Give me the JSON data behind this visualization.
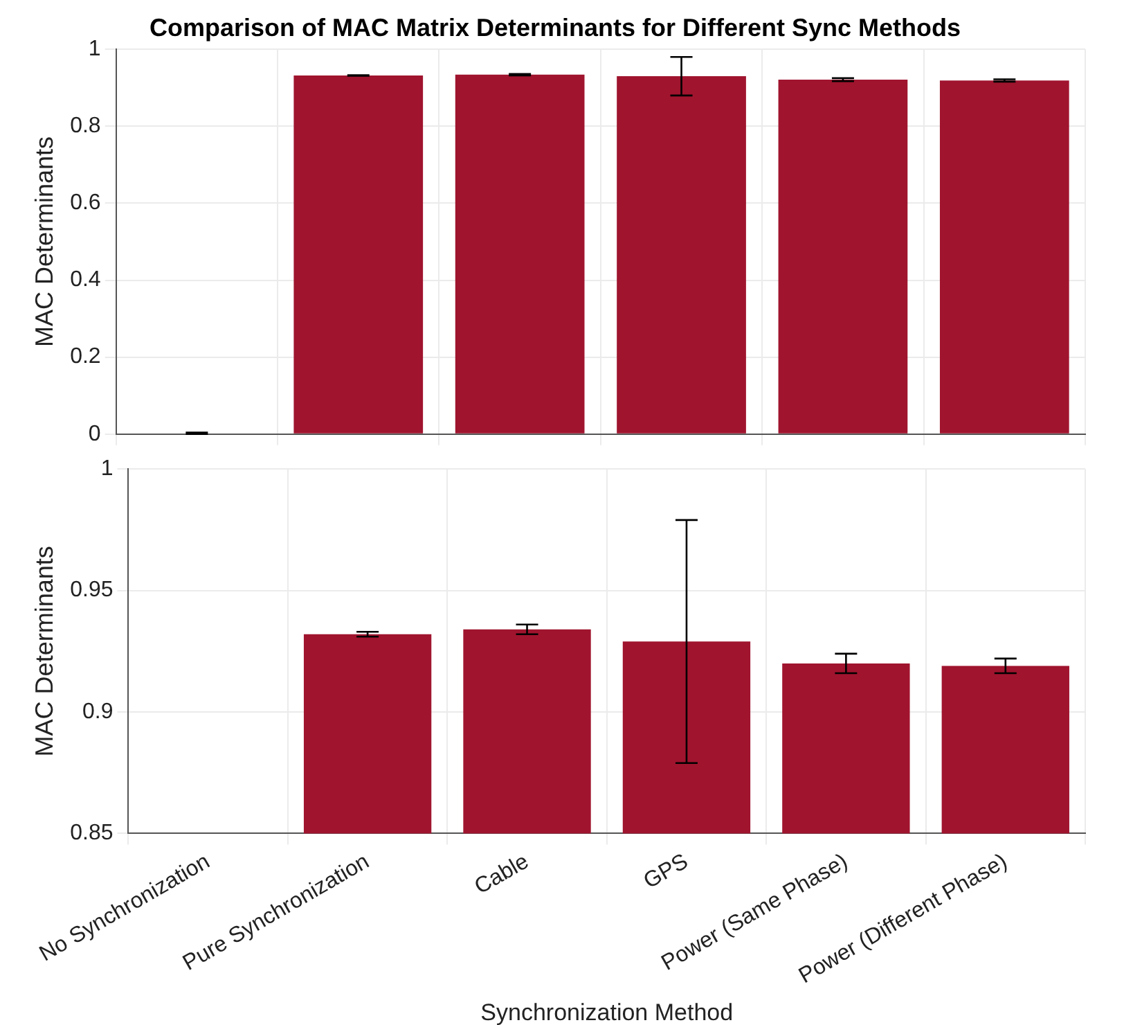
{
  "chart_data": [
    {
      "type": "bar",
      "title": "Comparison of MAC Matrix Determinants for Different Sync Methods",
      "ylabel": "MAC Determinants",
      "categories": [
        null,
        null,
        null,
        null,
        null,
        null
      ],
      "series": [
        {
          "color": "#a0142e",
          "values": [
            0.002,
            0.932,
            0.934,
            0.93,
            0.921,
            0.919
          ],
          "errors": [
            0.002,
            0.001,
            0.002,
            0.05,
            0.004,
            0.003
          ]
        }
      ],
      "ylim": [
        0,
        1
      ],
      "yticks": [
        0,
        0.2,
        0.4,
        0.6,
        0.8,
        1
      ],
      "grid": true,
      "tick_labels": "y"
    },
    {
      "type": "bar",
      "xlabel": "Synchronization Method",
      "ylabel": "MAC Determinants",
      "categories": [
        "No Synchronization",
        "Pure Synchronization",
        "Cable",
        "GPS",
        "Power (Same Phase)",
        "Power (Different Phase)"
      ],
      "series": [
        {
          "color": "#a0142e",
          "values": [
            null,
            0.932,
            0.934,
            0.929,
            0.92,
            0.919
          ],
          "errors": [
            null,
            0.001,
            0.002,
            0.05,
            0.004,
            0.003
          ]
        }
      ],
      "ylim": [
        0.85,
        1
      ],
      "yticks": [
        0.85,
        0.9,
        0.95,
        1
      ],
      "grid": true
    }
  ]
}
